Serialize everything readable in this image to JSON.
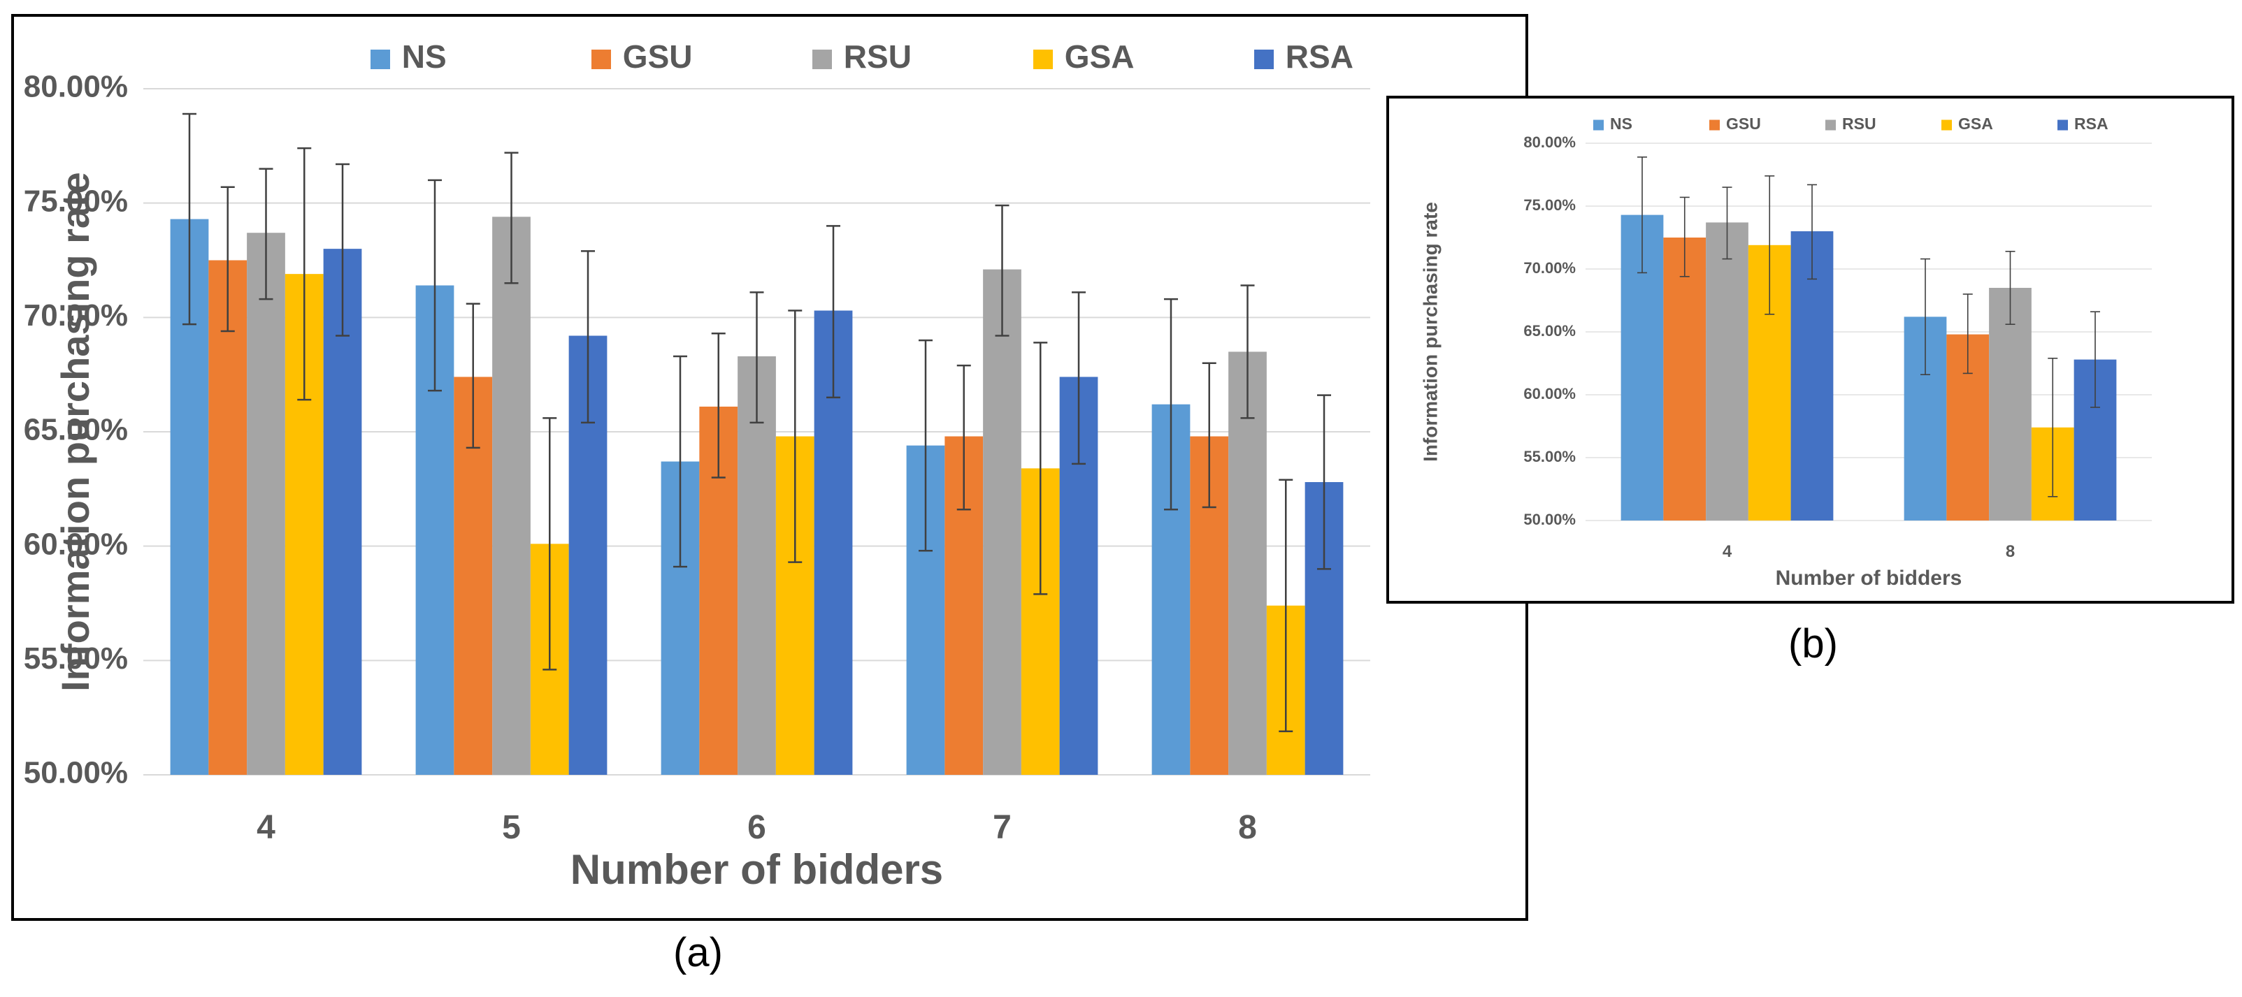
{
  "captions": {
    "a": "(a)",
    "b": "(b)"
  },
  "colors": {
    "NS": "#5b9bd5",
    "GSU": "#ed7d31",
    "RSU": "#a5a5a5",
    "GSA": "#ffc000",
    "RSA": "#4472c4"
  },
  "chart_data": [
    {
      "id": "a",
      "type": "bar",
      "title": "",
      "xlabel": "Number of bidders",
      "ylabel": "Information purchasing rate",
      "ylim": [
        0.5,
        0.8
      ],
      "yticks": [
        0.5,
        0.55,
        0.6,
        0.65,
        0.7,
        0.75,
        0.8
      ],
      "ytick_labels": [
        "50.00%",
        "55.00%",
        "60.00%",
        "65.00%",
        "70.00%",
        "75.00%",
        "80.00%"
      ],
      "grid": true,
      "legend": "top",
      "categories": [
        "4",
        "5",
        "6",
        "7",
        "8"
      ],
      "series": [
        {
          "name": "NS",
          "values": [
            0.743,
            0.714,
            0.637,
            0.644,
            0.662
          ],
          "err_low": [
            0.697,
            0.668,
            0.591,
            0.598,
            0.616
          ],
          "err_high": [
            0.789,
            0.76,
            0.683,
            0.69,
            0.708
          ]
        },
        {
          "name": "GSU",
          "values": [
            0.725,
            0.674,
            0.661,
            0.648,
            0.648
          ],
          "err_low": [
            0.694,
            0.643,
            0.63,
            0.616,
            0.617
          ],
          "err_high": [
            0.757,
            0.706,
            0.693,
            0.679,
            0.68
          ]
        },
        {
          "name": "RSU",
          "values": [
            0.737,
            0.744,
            0.683,
            0.721,
            0.685
          ],
          "err_low": [
            0.708,
            0.715,
            0.654,
            0.692,
            0.656
          ],
          "err_high": [
            0.765,
            0.772,
            0.711,
            0.749,
            0.714
          ]
        },
        {
          "name": "GSA",
          "values": [
            0.719,
            0.601,
            0.648,
            0.634,
            0.574
          ],
          "err_low": [
            0.664,
            0.546,
            0.593,
            0.579,
            0.519
          ],
          "err_high": [
            0.774,
            0.656,
            0.703,
            0.689,
            0.629
          ]
        },
        {
          "name": "RSA",
          "values": [
            0.73,
            0.692,
            0.703,
            0.674,
            0.628
          ],
          "err_low": [
            0.692,
            0.654,
            0.665,
            0.636,
            0.59
          ],
          "err_high": [
            0.767,
            0.729,
            0.74,
            0.711,
            0.666
          ]
        }
      ]
    },
    {
      "id": "b",
      "type": "bar",
      "title": "",
      "xlabel": "Number of bidders",
      "ylabel": "Information purchasing rate",
      "ylim": [
        0.5,
        0.8
      ],
      "yticks": [
        0.5,
        0.55,
        0.6,
        0.65,
        0.7,
        0.75,
        0.8
      ],
      "ytick_labels": [
        "50.00%",
        "55.00%",
        "60.00%",
        "65.00%",
        "70.00%",
        "75.00%",
        "80.00%"
      ],
      "grid": true,
      "legend": "top",
      "categories": [
        "4",
        "8"
      ],
      "series": [
        {
          "name": "NS",
          "values": [
            0.743,
            0.662
          ],
          "err_low": [
            0.697,
            0.616
          ],
          "err_high": [
            0.789,
            0.708
          ]
        },
        {
          "name": "GSU",
          "values": [
            0.725,
            0.648
          ],
          "err_low": [
            0.694,
            0.617
          ],
          "err_high": [
            0.757,
            0.68
          ]
        },
        {
          "name": "RSU",
          "values": [
            0.737,
            0.685
          ],
          "err_low": [
            0.708,
            0.656
          ],
          "err_high": [
            0.765,
            0.714
          ]
        },
        {
          "name": "GSA",
          "values": [
            0.719,
            0.574
          ],
          "err_low": [
            0.664,
            0.519
          ],
          "err_high": [
            0.774,
            0.629
          ]
        },
        {
          "name": "RSA",
          "values": [
            0.73,
            0.628
          ],
          "err_low": [
            0.692,
            0.59
          ],
          "err_high": [
            0.767,
            0.666
          ]
        }
      ]
    }
  ]
}
